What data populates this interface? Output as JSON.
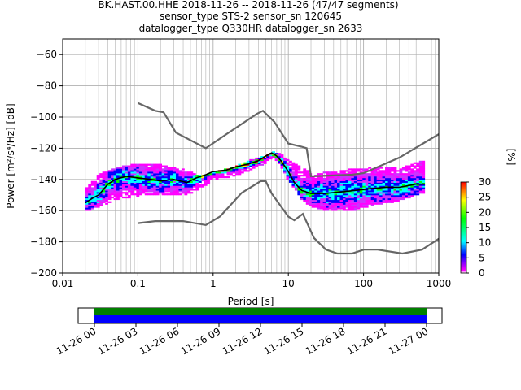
{
  "header": {
    "title_line1": "BK.HAST.00.HHE   2018-11-26 -- 2018-11-26  (47/47 segments)",
    "title_line2": "sensor_type STS-2 sensor_sn 120645",
    "title_line3": "datalogger_type Q330HR datalogger_sn 2633"
  },
  "colors": {
    "noise_model": "#666666",
    "mean_curve": "#000000",
    "grid": "#b0b0b0",
    "colormap": [
      "#ffffff",
      "#ff00ff",
      "#0000ff",
      "#00ffff",
      "#00ff00",
      "#ffff00",
      "#ff0000"
    ],
    "coverage_data": "#008000",
    "coverage_used": "#0000ff"
  },
  "chart_data": [
    {
      "type": "heatmap",
      "xlabel": "Period [s]",
      "ylabel": "Power [m²/s⁴/Hz] [dB]",
      "x_scale": "log",
      "xlim": [
        0.01,
        1000
      ],
      "ylim": [
        -200,
        -50
      ],
      "x_ticks": [
        0.01,
        0.1,
        1,
        10,
        100,
        1000
      ],
      "x_tick_labels": [
        "0.01",
        "0.1",
        "1",
        "10",
        "100",
        "1000"
      ],
      "y_ticks": [
        -200,
        -180,
        -160,
        -140,
        -120,
        -100,
        -80,
        -60
      ],
      "y_tick_labels": [
        "−200",
        "−180",
        "−160",
        "−140",
        "−120",
        "−100",
        "−80",
        "−60"
      ],
      "grid": true,
      "mean_psd": {
        "period": [
          0.02,
          0.025,
          0.03,
          0.04,
          0.05,
          0.07,
          0.1,
          0.15,
          0.2,
          0.3,
          0.45,
          0.6,
          0.8,
          1.0,
          1.5,
          2.0,
          3.0,
          4.0,
          5.0,
          6.0,
          7.0,
          8.0,
          10.0,
          12.0,
          15.0,
          20.0,
          30.0,
          50.0,
          80.0,
          120.0,
          200.0,
          300.0,
          500.0,
          650.0
        ],
        "power": [
          -155,
          -152,
          -150,
          -143,
          -140,
          -138,
          -139,
          -140,
          -141,
          -140,
          -142,
          -139,
          -137,
          -135,
          -134,
          -132,
          -130,
          -128,
          -125,
          -123,
          -125,
          -128,
          -135,
          -142,
          -147,
          -149,
          -149,
          -148,
          -147,
          -146,
          -145,
          -145,
          -143,
          -143
        ]
      },
      "psd_range": {
        "period": [
          0.02,
          0.03,
          0.05,
          0.1,
          0.2,
          0.4,
          0.7,
          1.0,
          2.0,
          3.0,
          5.0,
          6.5,
          8.0,
          10.0,
          15.0,
          20.0,
          30.0,
          50.0,
          80.0,
          120.0,
          200.0,
          350.0,
          650.0
        ],
        "upper": [
          -147,
          -137,
          -133,
          -130,
          -131,
          -134,
          -138,
          -136,
          -132,
          -128,
          -125,
          -122,
          -124,
          -128,
          -133,
          -136,
          -136,
          -135,
          -133,
          -133,
          -132,
          -132,
          -128
        ],
        "lower": [
          -160,
          -157,
          -153,
          -150,
          -150,
          -150,
          -146,
          -140,
          -137,
          -134,
          -129,
          -126,
          -131,
          -140,
          -152,
          -157,
          -159,
          -160,
          -159,
          -157,
          -155,
          -152,
          -148
        ]
      },
      "noise_models": [
        {
          "period": [
            0.1,
            0.17,
            0.22,
            0.32,
            0.8,
            1.5,
            3.8,
            4.6,
            6.5,
            10.0,
            15.0,
            17.5,
            20.0,
            70.0,
            100.0,
            300.0,
            1000.0
          ],
          "power": [
            -91,
            -96,
            -97,
            -110,
            -120,
            -111,
            -98,
            -96,
            -103,
            -117,
            -119,
            -120,
            -138,
            -137,
            -136,
            -126,
            -111
          ]
        },
        {
          "period": [
            0.1,
            0.17,
            0.4,
            0.8,
            1.24,
            2.4,
            4.3,
            5.0,
            6.0,
            10.0,
            12.0,
            15.6,
            21.9,
            31.6,
            45.0,
            70.0,
            101.0,
            154.0,
            328.0,
            600.0,
            1000.0
          ],
          "power": [
            -168,
            -166.7,
            -166.7,
            -169.2,
            -163.7,
            -148.6,
            -141.1,
            -141.1,
            -149,
            -163.8,
            -166.2,
            -162.1,
            -177.5,
            -185,
            -187.5,
            -187.5,
            -185,
            -185,
            -187.5,
            -185,
            -178
          ]
        }
      ],
      "colorbar": {
        "label": "[%]",
        "min": 0,
        "max": 30,
        "ticks": [
          0,
          5,
          10,
          15,
          20,
          25,
          30
        ],
        "tick_labels": [
          "0",
          "5",
          "10",
          "15",
          "20",
          "25",
          "30"
        ]
      }
    },
    {
      "type": "bar",
      "title": "",
      "x_range": [
        "2018-11-26 00:00",
        "2018-11-27 00:00"
      ],
      "x_tick_labels": [
        "11-26 00",
        "11-26 03",
        "11-26 06",
        "11-26 09",
        "11-26 12",
        "11-26 15",
        "11-26 18",
        "11-26 21",
        "11-27 00"
      ],
      "series": [
        {
          "start": "2018-11-26 00:00",
          "end": "2018-11-27 00:00"
        },
        {
          "start": "2018-11-26 00:00",
          "end": "2018-11-27 00:00"
        }
      ]
    }
  ]
}
